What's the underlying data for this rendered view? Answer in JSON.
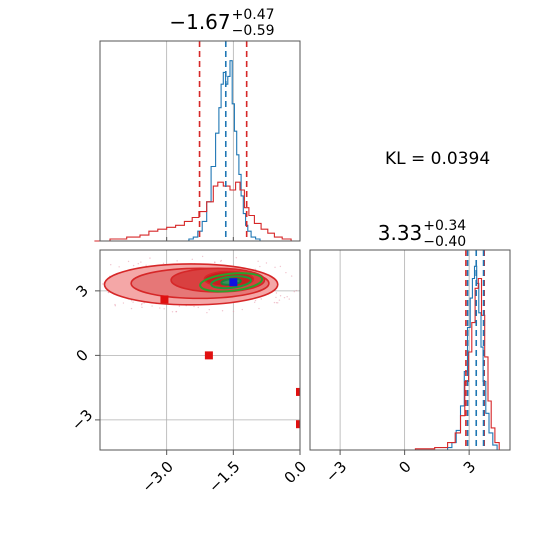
{
  "chart_data": [
    {
      "type": "histogram",
      "panel": "top-left",
      "title_main": "−1.67",
      "title_sup": "+0.47",
      "title_sub": "−0.59",
      "xlim": [
        -4.5,
        0.0
      ],
      "grid": true,
      "blue_quantiles": [
        -2.26,
        -1.67,
        -1.2
      ],
      "red_quantiles": [
        -2.26,
        -1.2
      ],
      "series": [
        {
          "name": "",
          "color": "#1f77b4",
          "x": [
            -2.55,
            -2.45,
            -2.35,
            -2.25,
            -2.15,
            -2.05,
            -1.95,
            -1.85,
            -1.8,
            -1.75,
            -1.7,
            -1.65,
            -1.6,
            -1.55,
            -1.5,
            -1.45,
            -1.4,
            -1.35,
            -1.3,
            -1.25,
            -1.2,
            -1.15,
            -1.05,
            -0.95,
            -0.85,
            -0.75
          ],
          "y": [
            0.0,
            0.01,
            0.02,
            0.05,
            0.1,
            0.2,
            0.38,
            0.55,
            0.68,
            0.8,
            0.86,
            0.8,
            0.84,
            0.92,
            0.7,
            0.56,
            0.44,
            0.34,
            0.23,
            0.14,
            0.08,
            0.05,
            0.02,
            0.01,
            0.0,
            0.0
          ]
        },
        {
          "name": "",
          "color": "#d62728",
          "x": [
            -4.45,
            -4.1,
            -3.7,
            -3.5,
            -3.3,
            -3.1,
            -2.9,
            -2.7,
            -2.5,
            -2.35,
            -2.2,
            -2.0,
            -1.9,
            -1.8,
            -1.65,
            -1.5,
            -1.4,
            -1.3,
            -1.2,
            -1.1,
            -0.95,
            -0.8,
            -0.65,
            -0.5,
            -0.3,
            -0.1
          ],
          "y": [
            0.0,
            0.01,
            0.02,
            0.03,
            0.05,
            0.06,
            0.07,
            0.08,
            0.1,
            0.12,
            0.15,
            0.2,
            0.28,
            0.3,
            0.28,
            0.26,
            0.3,
            0.26,
            0.17,
            0.13,
            0.09,
            0.06,
            0.04,
            0.02,
            0.01,
            0.0
          ]
        }
      ]
    },
    {
      "type": "contour",
      "panel": "bottom-left",
      "xlim": [
        -4.5,
        0.0
      ],
      "ylim": [
        -4.4,
        4.9
      ],
      "xticks": [
        "−3.0",
        "−1.5",
        "0.0"
      ],
      "xtick_values": [
        -3.0,
        -1.5,
        0.0
      ],
      "yticks": [
        "−3",
        "0",
        "3"
      ],
      "ytick_values": [
        -3,
        0,
        3
      ],
      "grid": true,
      "red_contours": [
        {
          "cx": -2.45,
          "cy": 3.3,
          "rx": 1.95,
          "ry": 0.95,
          "fill": "#f4a7a7"
        },
        {
          "cx": -2.25,
          "cy": 3.35,
          "rx": 1.55,
          "ry": 0.7,
          "fill": "#e67777"
        },
        {
          "cx": -1.85,
          "cy": 3.5,
          "rx": 1.05,
          "ry": 0.55,
          "fill": "#d94040"
        },
        {
          "cx": -1.6,
          "cy": 3.55,
          "rx": 0.55,
          "ry": 0.35,
          "fill": "#c71f1f"
        }
      ],
      "green_contours": [
        {
          "cx": -1.55,
          "cy": 3.4,
          "rx": 0.7,
          "ry": 0.4
        },
        {
          "cx": -1.55,
          "cy": 3.4,
          "rx": 0.45,
          "ry": 0.26
        },
        {
          "cx": -1.55,
          "cy": 3.42,
          "rx": 0.22,
          "ry": 0.13
        }
      ],
      "red_markers": [
        {
          "x": -3.05,
          "y": 2.6
        },
        {
          "x": -2.05,
          "y": 0.0
        },
        {
          "x": 0.0,
          "y": -1.7
        },
        {
          "x": 0.0,
          "y": -3.2
        }
      ],
      "blue_marker": {
        "x": -1.5,
        "y": 3.4
      }
    },
    {
      "type": "histogram",
      "panel": "bottom-right",
      "title_main": "3.33",
      "title_sup": "+0.34",
      "title_sub": "−0.40",
      "xlim": [
        -4.4,
        4.9
      ],
      "xticks": [
        "−3",
        "0",
        "3"
      ],
      "xtick_values": [
        -3,
        0,
        3
      ],
      "grid": true,
      "blue_quantiles": [
        2.93,
        3.33,
        3.67
      ],
      "red_quantiles": [
        2.85,
        3.7
      ],
      "series": [
        {
          "name": "",
          "color": "#1f77b4",
          "x": [
            1.9,
            2.1,
            2.3,
            2.5,
            2.7,
            2.85,
            3.0,
            3.1,
            3.2,
            3.3,
            3.4,
            3.5,
            3.6,
            3.7,
            3.85,
            4.0,
            4.2,
            4.4
          ],
          "y": [
            0.0,
            0.01,
            0.03,
            0.08,
            0.18,
            0.32,
            0.5,
            0.62,
            0.7,
            0.75,
            0.68,
            0.56,
            0.42,
            0.28,
            0.15,
            0.07,
            0.02,
            0.0
          ]
        },
        {
          "name": "",
          "color": "#d62728",
          "x": [
            -1.0,
            0.0,
            1.0,
            1.8,
            2.2,
            2.5,
            2.7,
            2.9,
            3.05,
            3.2,
            3.35,
            3.5,
            3.65,
            3.8,
            3.95,
            4.1,
            4.3,
            4.5
          ],
          "y": [
            0.0,
            0.0,
            0.005,
            0.01,
            0.03,
            0.07,
            0.14,
            0.28,
            0.4,
            0.52,
            0.66,
            0.7,
            0.55,
            0.38,
            0.2,
            0.09,
            0.03,
            0.0
          ]
        }
      ]
    }
  ],
  "annotation": {
    "kl_text": "KL = 0.0394"
  }
}
